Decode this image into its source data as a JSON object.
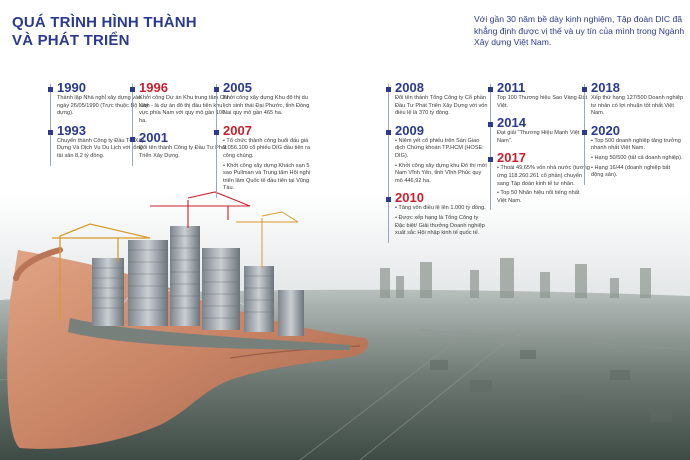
{
  "header": {
    "title_line1": "QUÁ TRÌNH HÌNH THÀNH",
    "title_line2": "VÀ PHÁT TRIỂN",
    "intro": "Với gần 30 năm bề dày kinh nghiệm, Tập đoàn DIC đã khẳng định được vị thế và uy tín của mình trong Ngành Xây dựng Việt Nam."
  },
  "colors": {
    "accent_blue": "#2b3a8c",
    "accent_red": "#c8202e"
  },
  "timeline": {
    "y1990": {
      "year": "1990",
      "text": "Thành lập Nhà nghỉ xây dựng vào ngày 26/05/1990 (Trực thuộc Bộ Xây dựng)."
    },
    "y1993": {
      "year": "1993",
      "text": "Chuyển thành Công ty Đầu Tư Xây Dựng Và Dịch Vụ Du Lịch với tổng tài sản 8,2 tỷ đồng."
    },
    "y1996": {
      "year": "1996",
      "text": "Khởi công Dự án Khu trung tâm Chí Linh - là dự án đô thị đầu tiên khu vực phía Nam với quy mô gần 100 ha."
    },
    "y2001": {
      "year": "2001",
      "text": "Đổi tên thành Công ty Đầu Tư Phát Triển Xây Dựng."
    },
    "y2005": {
      "year": "2005",
      "text": "Khởi công xây dựng Khu đô thị du lịch sinh thái Đại Phước, tỉnh Đồng Nai quy mô gần 465 ha."
    },
    "y2007": {
      "year": "2007",
      "p1": "• Tổ chức thành công buổi đấu giá 9.056.100 cổ phiếu DIG đầu tiên ra công chúng.",
      "p2": "• Khởi công xây dựng Khách sạn 5 sao Pullman và Trung tâm Hội nghị triển lãm Quốc tế đầu tiên tại Vũng Tàu."
    },
    "y2008": {
      "year": "2008",
      "text": "Đổi tên thành Tổng Công ty Cổ phần Đầu Tư Phát Triển Xây Dựng với vốn điều lệ là 370 tỷ đồng."
    },
    "y2009": {
      "year": "2009",
      "p1": "• Niêm yết cổ phiếu trên Sàn Giao dịch Chứng khoán TP.HCM (HOSE: DIG).",
      "p2": "• Khởi công xây dựng khu Đô thị mới Nam Vĩnh Yên, tỉnh Vĩnh Phúc quy mô 446,92 ha."
    },
    "y2010": {
      "year": "2010",
      "p1": "• Tăng vốn điều lệ lên 1.000 tỷ đồng.",
      "p2": "• Được xếp hạng là Tổng Công ty Đặc biệt/ Giải thưởng Doanh nghiệp xuất sắc Hội nhập kinh tế quốc tế."
    },
    "y2011": {
      "year": "2011",
      "text": "Top 100 Thương hiệu Sao Vàng Đất Việt."
    },
    "y2014": {
      "year": "2014",
      "text": "Đạt giải \"Thương Hiệu Mạnh Việt Nam\"."
    },
    "y2017": {
      "year": "2017",
      "p1": "• Thoái 49,65% vốn nhà nước (tương ứng 118.260.261 cổ phần) chuyển sang Tập đoàn kinh tế tư nhân.",
      "p2": "• Top 50 Nhãn hiệu nổi tiếng nhất Việt Nam."
    },
    "y2018": {
      "year": "2018",
      "text": "Xếp thứ hạng 127/500 Doanh nghiệp tư nhân có lợi nhuận tốt nhất Việt Nam."
    },
    "y2020": {
      "year": "2020",
      "p1": "• Top 500 doanh nghiệp tăng trưởng nhanh nhất Việt Nam.",
      "p2": "• Hạng 50/500 (tất cả doanh nghiệp).",
      "p3": "• Hạng 16/44 (doanh nghiệp bất động sản)."
    }
  }
}
